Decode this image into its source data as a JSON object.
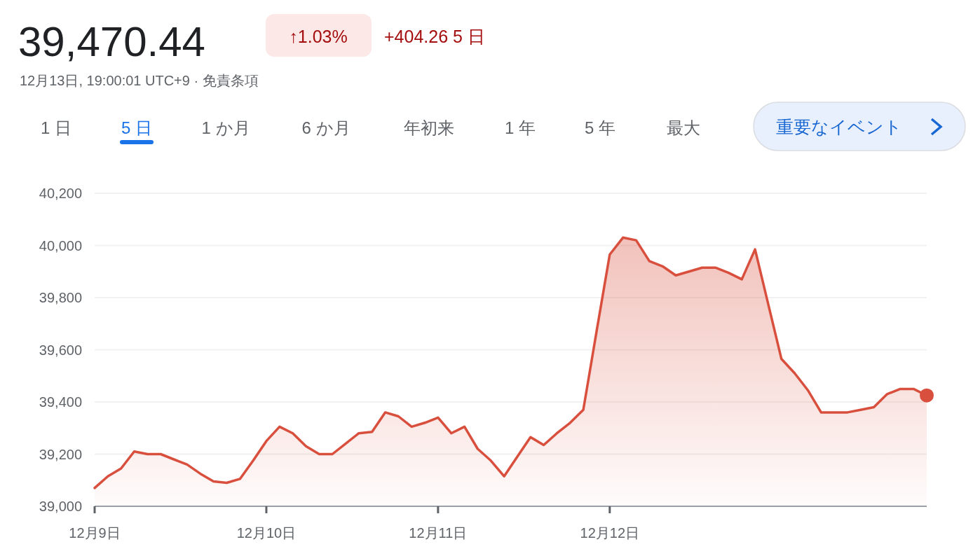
{
  "chart_data": {
    "type": "area",
    "title": "39,470.44",
    "subtitle": "12月13日, 19:00:01 UTC+9 · 免責条項",
    "annotations": [
      "↑1.03%",
      "+404.26 5 日",
      "1 日",
      "5 日",
      "1 か月",
      "6 か月",
      "年初来",
      "1 年",
      "5 年",
      "最大",
      "重要なイベント"
    ],
    "categories": [
      "12月9日",
      null,
      null,
      null,
      null,
      null,
      null,
      null,
      null,
      null,
      null,
      null,
      null,
      "12月10日",
      null,
      null,
      null,
      null,
      null,
      null,
      null,
      null,
      null,
      null,
      null,
      null,
      "12月11日",
      null,
      null,
      null,
      null,
      null,
      null,
      null,
      null,
      null,
      null,
      null,
      null,
      "12月12日",
      null,
      null,
      null,
      null,
      null,
      null,
      null,
      null,
      null,
      null,
      null,
      null,
      null,
      null,
      null,
      null,
      null,
      null,
      null,
      null,
      null,
      null,
      null,
      null
    ],
    "ylim": [
      39000,
      40200
    ],
    "yticks": [
      {
        "value": 39000,
        "label": "39,000"
      },
      {
        "value": 39200,
        "label": "39,200"
      },
      {
        "value": 39400,
        "label": "39,400"
      },
      {
        "value": 39600,
        "label": "39,600"
      },
      {
        "value": 39800,
        "label": "39,800"
      },
      {
        "value": 40000,
        "label": "40,000"
      },
      {
        "value": 40200,
        "label": "40,200"
      }
    ],
    "grid": "y",
    "series": [
      {
        "type": "area",
        "color": "#d94f3d",
        "values": [
          39070,
          39115,
          39145,
          39210,
          39200,
          39200,
          39180,
          39160,
          39125,
          39095,
          39090,
          39105,
          39175,
          39250,
          39305,
          39280,
          39230,
          39200,
          39200,
          39240,
          39280,
          39285,
          39360,
          39345,
          39305,
          39320,
          39340,
          39280,
          39305,
          39220,
          39175,
          39115,
          39190,
          39265,
          39235,
          39280,
          39320,
          39370,
          39670,
          39965,
          40030,
          40020,
          39940,
          39920,
          39885,
          39900,
          39915,
          39915,
          39895,
          39870,
          39985,
          39775,
          39565,
          39510,
          39445,
          39360,
          39360,
          39360,
          39370,
          39380,
          39430,
          39450,
          39450,
          39425
        ]
      },
      {
        "type": "scatter",
        "color": "#d94f3d",
        "marker": "circle",
        "values": [
          null,
          null,
          null,
          null,
          null,
          null,
          null,
          null,
          null,
          null,
          null,
          null,
          null,
          null,
          null,
          null,
          null,
          null,
          null,
          null,
          null,
          null,
          null,
          null,
          null,
          null,
          null,
          null,
          null,
          null,
          null,
          null,
          null,
          null,
          null,
          null,
          null,
          null,
          null,
          null,
          null,
          null,
          null,
          null,
          null,
          null,
          null,
          null,
          null,
          null,
          null,
          null,
          null,
          null,
          null,
          null,
          null,
          null,
          null,
          null,
          null,
          null,
          null,
          39425
        ]
      }
    ]
  }
}
